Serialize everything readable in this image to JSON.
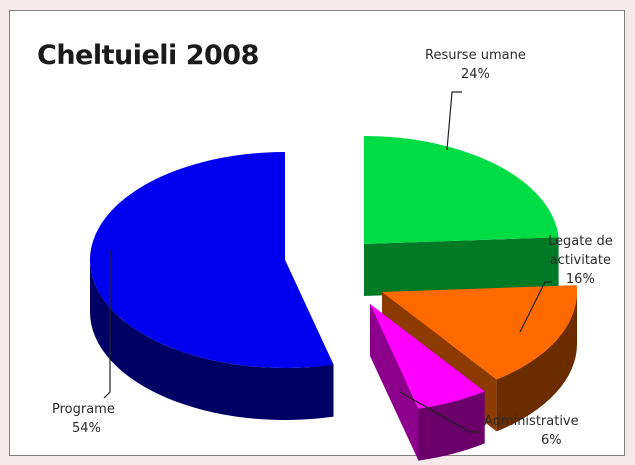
{
  "chart_data": {
    "type": "pie",
    "title": "Cheltuieli 2008",
    "slices": [
      {
        "name": "Resurse umane",
        "value": 24,
        "label": "24%",
        "color": "#00dd44"
      },
      {
        "name": "Legate de activitate",
        "name_lines": [
          "Legate de",
          "activitate"
        ],
        "value": 16,
        "label": "16%",
        "color": "#ff6a00"
      },
      {
        "name": "Administrative",
        "value": 6,
        "label": "6%",
        "color": "#ff00ff"
      },
      {
        "name": "Programe",
        "value": 54,
        "label": "54%",
        "color": "#0000ee"
      }
    ],
    "style": "3d exploded",
    "legend": "none (data labels with leader lines)"
  }
}
